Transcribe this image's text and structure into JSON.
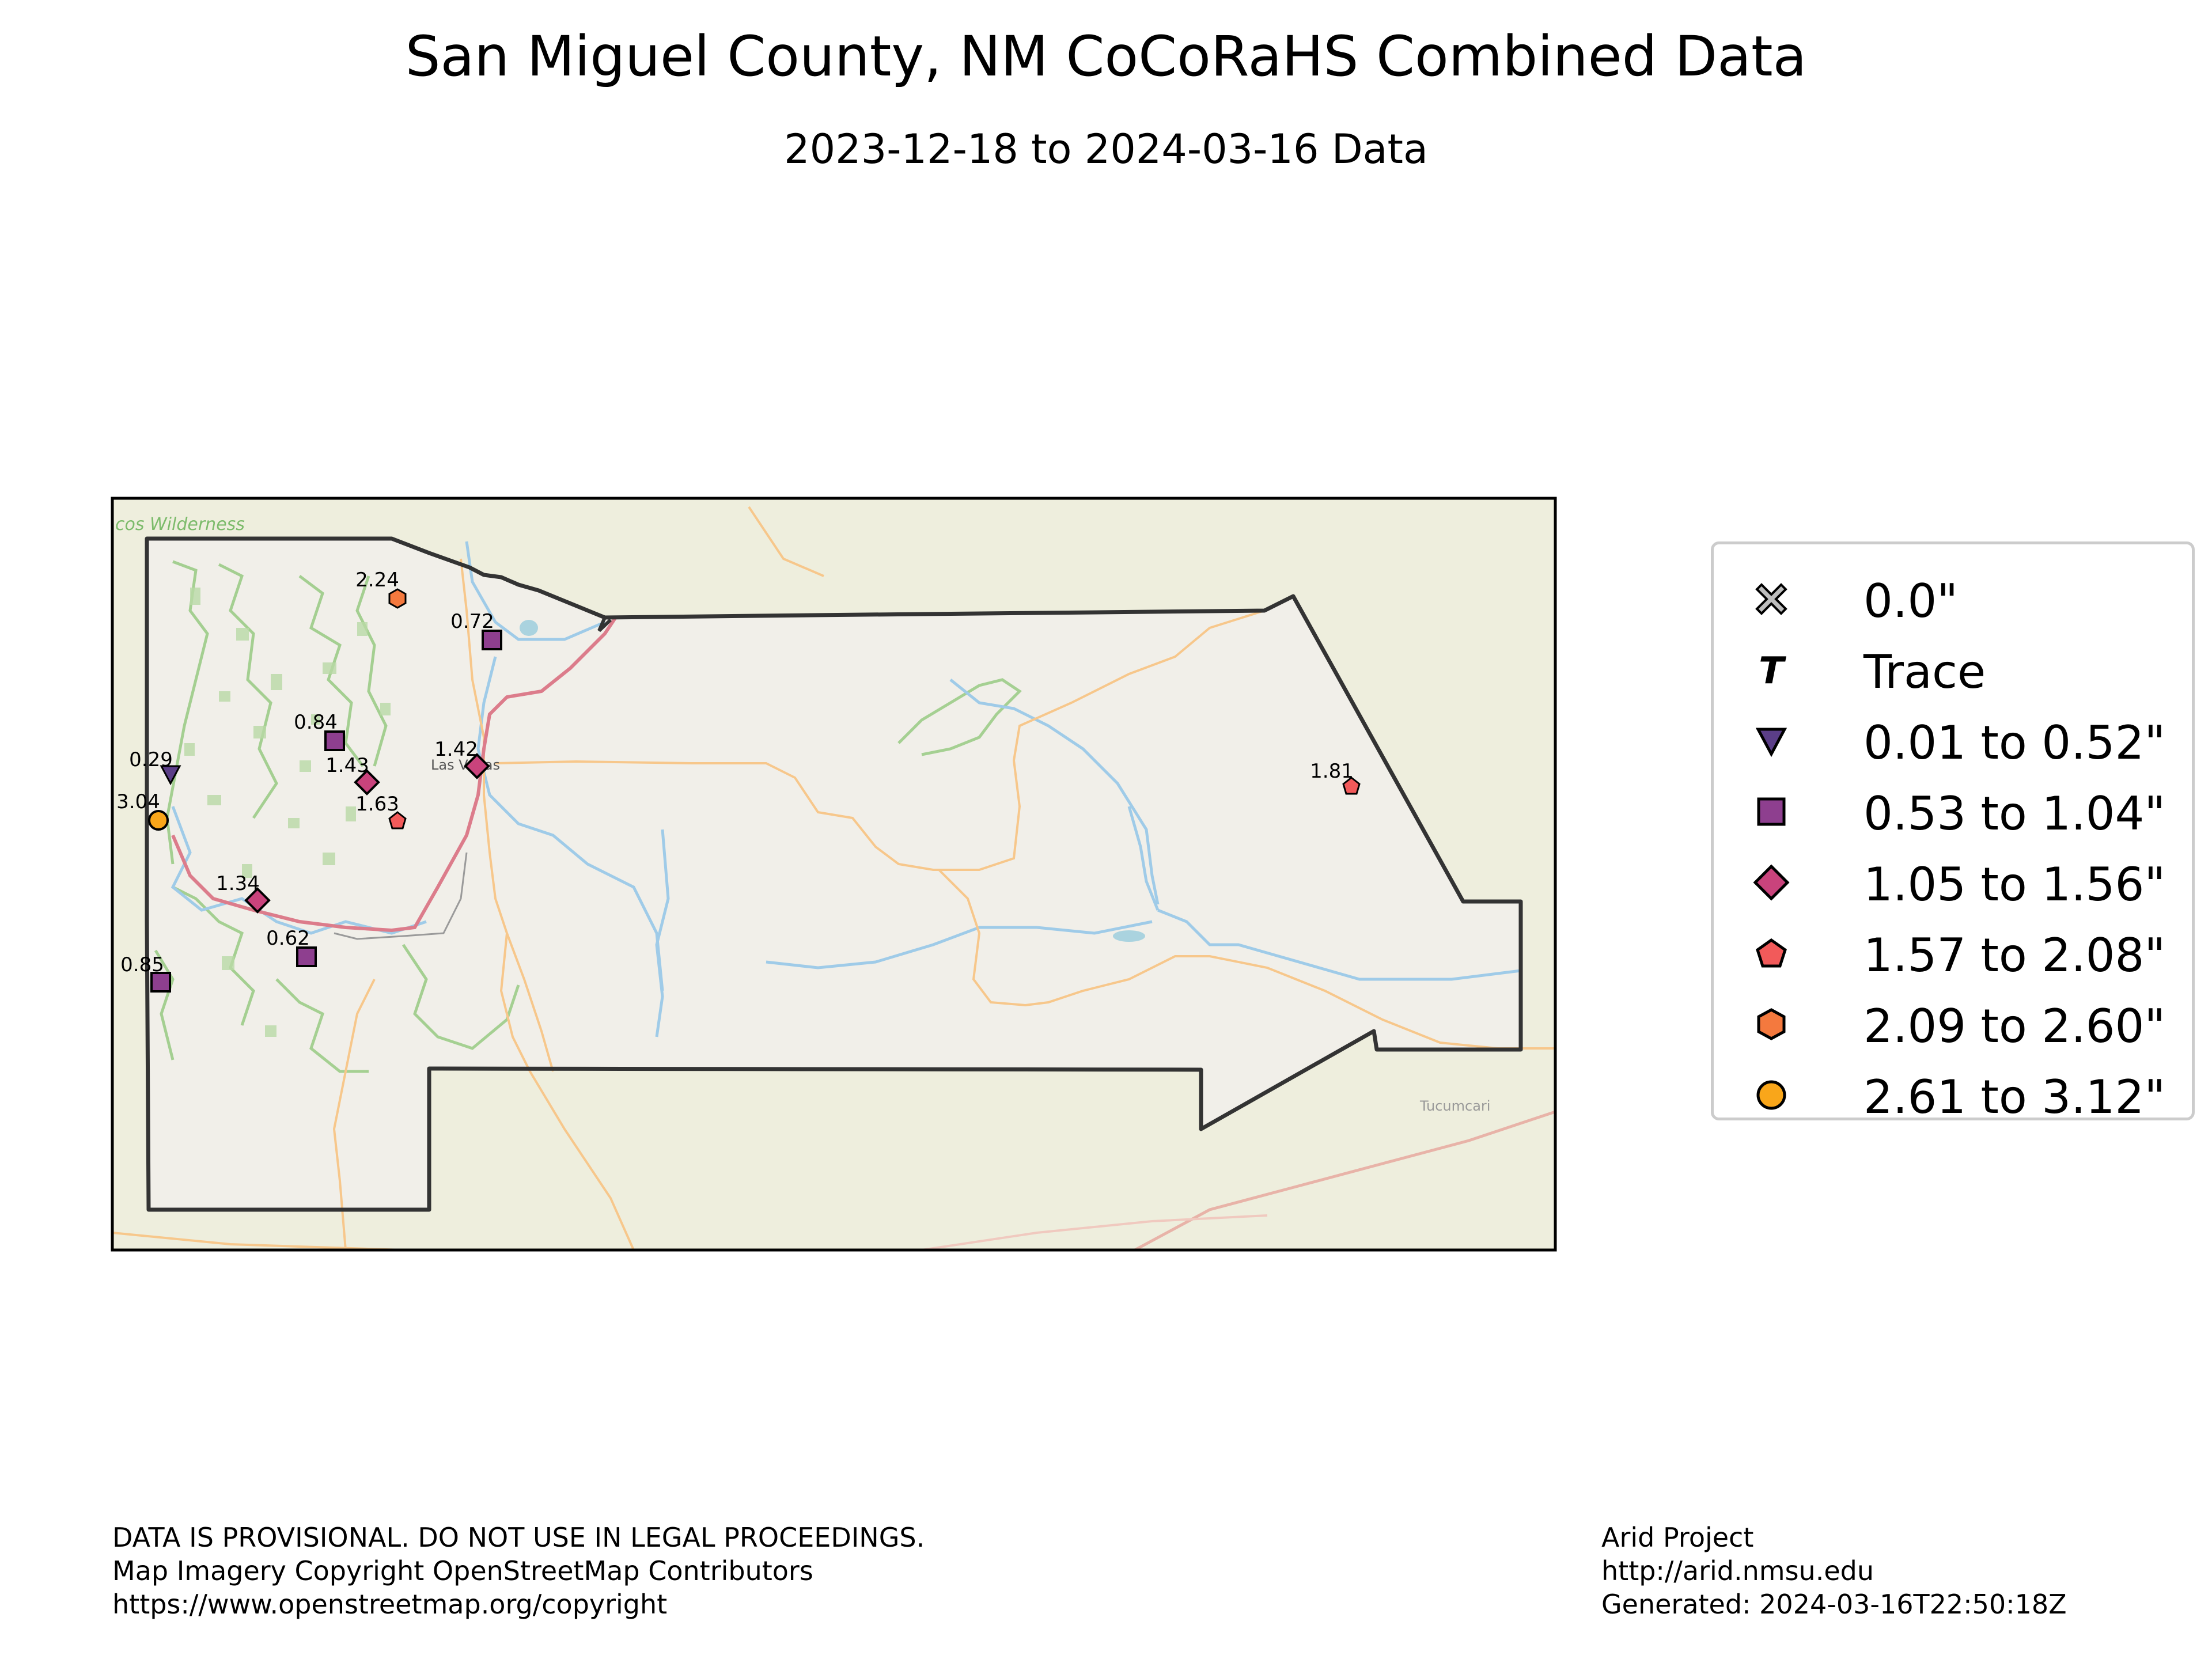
{
  "title": "San Miguel County, NM CoCoRaHS Combined Data",
  "subtitle": "2023-12-18 to 2024-03-16 Data",
  "map_labels": {
    "wilderness": "cos Wilderness",
    "las_vegas": "Las Vegas",
    "tucumcari": "Tucumcari"
  },
  "stations": [
    {
      "value": "2.24",
      "symbol": "hexagon",
      "color": "#f4793e"
    },
    {
      "value": "0.72",
      "symbol": "square",
      "color": "#8e3f8f"
    },
    {
      "value": "0.84",
      "symbol": "square",
      "color": "#8e3f8f"
    },
    {
      "value": "1.42",
      "symbol": "diamond",
      "color": "#c9437c"
    },
    {
      "value": "1.43",
      "symbol": "diamond",
      "color": "#c9437c"
    },
    {
      "value": "0.29",
      "symbol": "triangle-down",
      "color": "#5b3e88"
    },
    {
      "value": "3.04",
      "symbol": "circle",
      "color": "#f9a61a"
    },
    {
      "value": "1.63",
      "symbol": "pentagon",
      "color": "#f25a5a"
    },
    {
      "value": "1.34",
      "symbol": "diamond",
      "color": "#c9437c"
    },
    {
      "value": "0.62",
      "symbol": "square",
      "color": "#8e3f8f"
    },
    {
      "value": "0.85",
      "symbol": "square",
      "color": "#8e3f8f"
    },
    {
      "value": "1.81",
      "symbol": "pentagon",
      "color": "#f25a5a"
    }
  ],
  "legend": [
    {
      "label": "0.0\"",
      "symbol": "x-mark",
      "color": "#bdbdbd"
    },
    {
      "label": "Trace",
      "symbol": "t-mark",
      "color": "#000000"
    },
    {
      "label": "0.01 to 0.52\"",
      "symbol": "triangle-down",
      "color": "#5b3e88"
    },
    {
      "label": "0.53 to 1.04\"",
      "symbol": "square",
      "color": "#8e3f8f"
    },
    {
      "label": "1.05 to 1.56\"",
      "symbol": "diamond",
      "color": "#c9437c"
    },
    {
      "label": "1.57 to 2.08\"",
      "symbol": "pentagon",
      "color": "#f25a5a"
    },
    {
      "label": "2.09 to 2.60\"",
      "symbol": "hexagon",
      "color": "#f4793e"
    },
    {
      "label": "2.61 to 3.12\"",
      "symbol": "circle",
      "color": "#f9a61a"
    }
  ],
  "footer_left": [
    "DATA IS PROVISIONAL. DO NOT USE IN LEGAL PROCEEDINGS.",
    "Map Imagery Copyright OpenStreetMap Contributors",
    "https://www.openstreetmap.org/copyright"
  ],
  "footer_right": [
    "Arid Project",
    "http://arid.nmsu.edu",
    "Generated: 2024-03-16T22:50:18Z"
  ]
}
